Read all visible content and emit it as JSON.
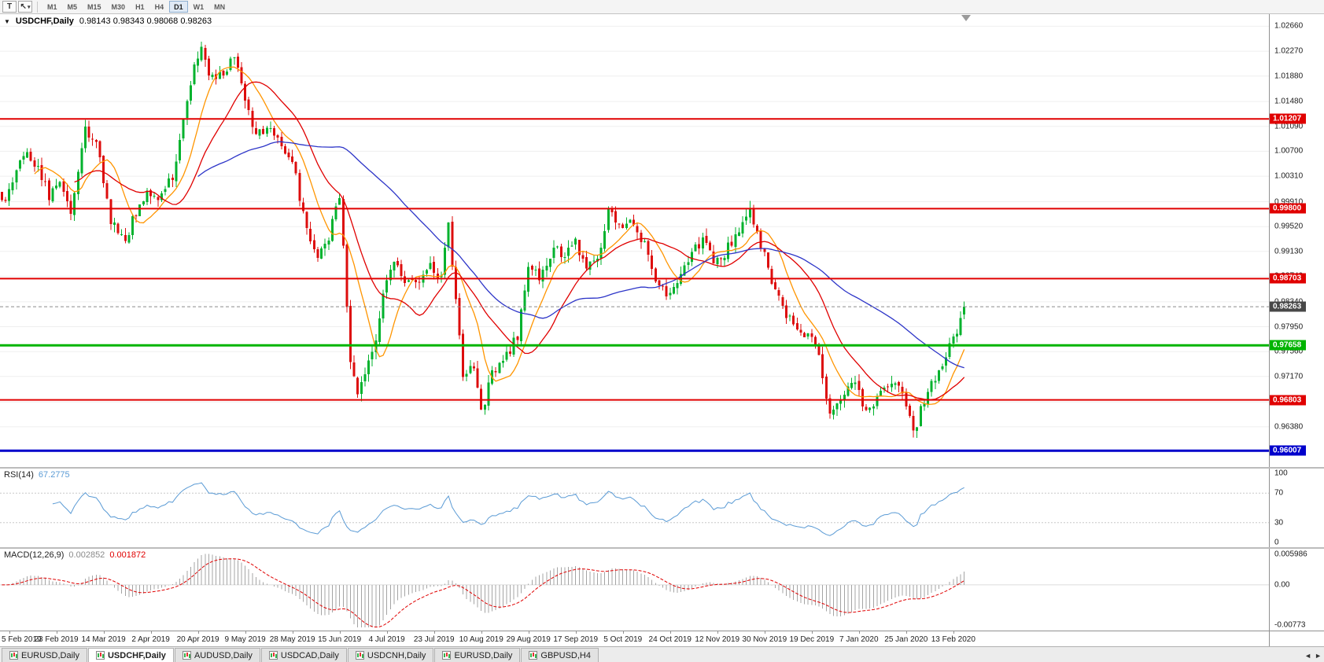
{
  "icons": {
    "one_click_trading": "▼",
    "cursor": "↖",
    "dropdown_caret": "▾",
    "tab_scroll_left": "◄",
    "tab_scroll_right": "►"
  },
  "toolbar": {
    "text_tool": "T",
    "timeframes": [
      "M1",
      "M5",
      "M15",
      "M30",
      "H1",
      "H4",
      "D1",
      "W1",
      "MN"
    ],
    "active_timeframe": "D1"
  },
  "chart": {
    "title": "USDCHF,Daily",
    "ohlc": "0.98143 0.98343 0.98068 0.98263"
  },
  "tabs": [
    {
      "label": "EURUSD,Daily",
      "active": false
    },
    {
      "label": "USDCHF,Daily",
      "active": true
    },
    {
      "label": "AUDUSD,Daily",
      "active": false
    },
    {
      "label": "USDCAD,Daily",
      "active": false
    },
    {
      "label": "USDCNH,Daily",
      "active": false
    },
    {
      "label": "EURUSD,Daily",
      "active": false
    },
    {
      "label": "GBPUSD,H4",
      "active": false
    }
  ],
  "chart_data": {
    "type": "candlestick",
    "symbol": "USDCHF",
    "timeframe": "Daily",
    "last_ohlc": {
      "open": 0.98143,
      "high": 0.98343,
      "low": 0.98068,
      "close": 0.98263
    },
    "ylim": [
      0.9575,
      1.0285
    ],
    "y_ticks": [
      "1.02660",
      "1.02270",
      "1.01880",
      "1.01480",
      "1.01090",
      "1.00700",
      "1.00310",
      "0.99910",
      "0.99520",
      "0.99130",
      "0.98740",
      "0.98340",
      "0.97950",
      "0.97560",
      "0.97170",
      "0.96770",
      "0.96380",
      "0.95990"
    ],
    "x_labels": [
      "5 Feb 2019",
      "23 Feb 2019",
      "14 Mar 2019",
      "2 Apr 2019",
      "20 Apr 2019",
      "9 May 2019",
      "28 May 2019",
      "15 Jun 2019",
      "4 Jul 2019",
      "23 Jul 2019",
      "10 Aug 2019",
      "29 Aug 2019",
      "17 Sep 2019",
      "5 Oct 2019",
      "24 Oct 2019",
      "12 Nov 2019",
      "30 Nov 2019",
      "19 Dec 2019",
      "7 Jan 2020",
      "25 Jan 2020",
      "13 Feb 2020"
    ],
    "num_candles": 266,
    "candle_colors": {
      "up": "#00b22d",
      "down": "#dd0d0d"
    },
    "close_waypoints": [
      [
        0,
        0.999
      ],
      [
        3,
        1.0015
      ],
      [
        6,
        1.007
      ],
      [
        10,
        1.0048
      ],
      [
        13,
        0.9998
      ],
      [
        16,
        1.0022
      ],
      [
        19,
        0.997
      ],
      [
        23,
        1.0105
      ],
      [
        26,
        1.0085
      ],
      [
        30,
        0.9962
      ],
      [
        34,
        0.993
      ],
      [
        37,
        0.9975
      ],
      [
        40,
        1.0006
      ],
      [
        43,
        0.9996
      ],
      [
        47,
        1.0028
      ],
      [
        50,
        1.012
      ],
      [
        53,
        1.0205
      ],
      [
        55,
        1.0232
      ],
      [
        57,
        1.0188
      ],
      [
        61,
        1.0194
      ],
      [
        64,
        1.0218
      ],
      [
        67,
        1.0148
      ],
      [
        70,
        1.0101
      ],
      [
        74,
        1.0108
      ],
      [
        77,
        1.0075
      ],
      [
        80,
        1.006
      ],
      [
        83,
        0.9968
      ],
      [
        87,
        0.9897
      ],
      [
        90,
        0.9935
      ],
      [
        93,
        1.0005
      ],
      [
        96,
        0.9736
      ],
      [
        98,
        0.969
      ],
      [
        102,
        0.975
      ],
      [
        105,
        0.9842
      ],
      [
        108,
        0.9895
      ],
      [
        111,
        0.9869
      ],
      [
        115,
        0.9856
      ],
      [
        118,
        0.9895
      ],
      [
        121,
        0.9869
      ],
      [
        123,
        0.9958
      ],
      [
        127,
        0.9712
      ],
      [
        130,
        0.9736
      ],
      [
        132,
        0.9658
      ],
      [
        135,
        0.9723
      ],
      [
        139,
        0.975
      ],
      [
        142,
        0.9782
      ],
      [
        145,
        0.9895
      ],
      [
        148,
        0.9869
      ],
      [
        152,
        0.992
      ],
      [
        155,
        0.9909
      ],
      [
        158,
        0.9928
      ],
      [
        161,
        0.9882
      ],
      [
        165,
        0.9915
      ],
      [
        167,
        0.9985
      ],
      [
        170,
        0.9948
      ],
      [
        173,
        0.9966
      ],
      [
        177,
        0.9922
      ],
      [
        180,
        0.9869
      ],
      [
        183,
        0.985
      ],
      [
        186,
        0.9862
      ],
      [
        190,
        0.9909
      ],
      [
        193,
        0.9935
      ],
      [
        196,
        0.9896
      ],
      [
        199,
        0.9909
      ],
      [
        203,
        0.9948
      ],
      [
        206,
        0.9978
      ],
      [
        209,
        0.9922
      ],
      [
        212,
        0.9869
      ],
      [
        216,
        0.9816
      ],
      [
        219,
        0.9796
      ],
      [
        222,
        0.9782
      ],
      [
        225,
        0.9749
      ],
      [
        228,
        0.9658
      ],
      [
        232,
        0.9696
      ],
      [
        235,
        0.9709
      ],
      [
        238,
        0.9662
      ],
      [
        241,
        0.9685
      ],
      [
        245,
        0.9702
      ],
      [
        248,
        0.9696
      ],
      [
        251,
        0.9625
      ],
      [
        254,
        0.9682
      ],
      [
        258,
        0.9722
      ],
      [
        261,
        0.9765
      ],
      [
        263,
        0.9792
      ],
      [
        265,
        0.98263
      ]
    ],
    "moving_averages": [
      {
        "period": 10,
        "color": "#ff9500",
        "name": "ma-fast"
      },
      {
        "period": 21,
        "color": "#e00000",
        "name": "ma-mid"
      },
      {
        "period": 55,
        "color": "#2d35c8",
        "name": "ma-slow"
      }
    ],
    "hlines": [
      {
        "price": 1.01207,
        "label": "1.01207",
        "color": "#e00000",
        "width": 2
      },
      {
        "price": 0.998,
        "label": "0.99800",
        "color": "#e00000",
        "width": 2
      },
      {
        "price": 0.98703,
        "label": "0.98703",
        "color": "#e00000",
        "width": 2
      },
      {
        "price": 0.97658,
        "label": "0.97658",
        "color": "#00b400",
        "width": 3
      },
      {
        "price": 0.96803,
        "label": "0.96803",
        "color": "#e00000",
        "width": 2
      },
      {
        "price": 0.96007,
        "label": "0.96007",
        "color": "#0000cc",
        "width": 3
      }
    ],
    "current_price": {
      "price": 0.98263,
      "label": "0.98263",
      "color": "#484848"
    },
    "indicators": {
      "rsi": {
        "name": "RSI(14)",
        "value_text": "67.2775",
        "period": 14,
        "levels": [
          100,
          70,
          30,
          0
        ],
        "color": "#5b9bd5"
      },
      "macd": {
        "name": "MACD(12,26,9)",
        "value_main": "0.002852",
        "value_signal": "0.001872",
        "fast": 12,
        "slow": 26,
        "signal": 9,
        "scale": {
          "max": 0.005986,
          "min": -0.00773
        },
        "scale_labels": [
          "0.005986",
          "0.00",
          "-0.00773"
        ],
        "hist_color": "#a4a4a4",
        "signal_color": "#e00000"
      }
    }
  }
}
